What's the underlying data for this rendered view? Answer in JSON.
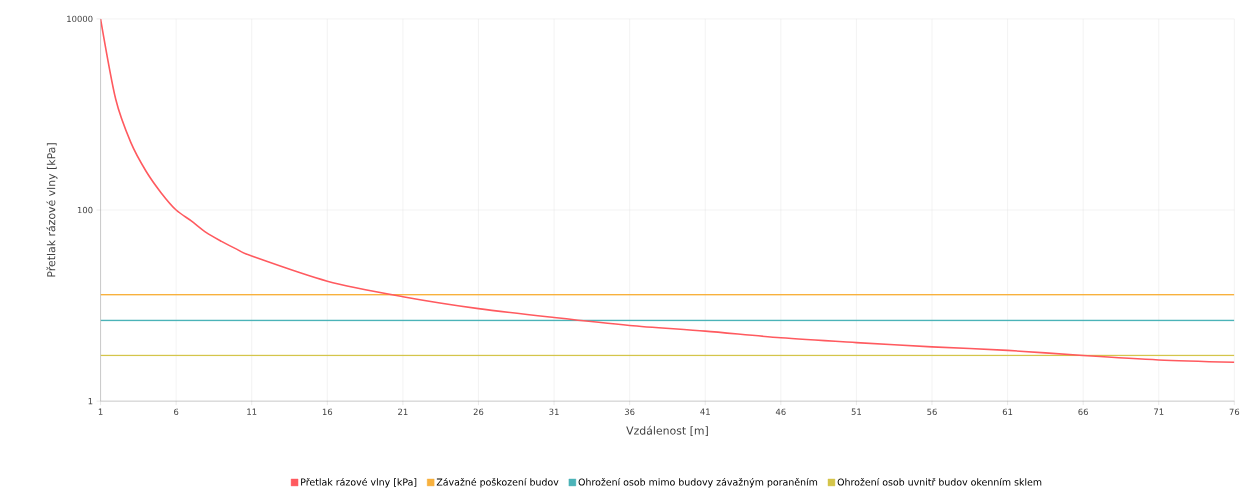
{
  "chart_data": {
    "type": "line",
    "xlabel": "Vzdálenost [m]",
    "ylabel": "Přetlak rázové vlny [kPa]",
    "log": "y",
    "xlim": [
      1,
      76
    ],
    "xticks": [
      1,
      6,
      11,
      16,
      21,
      26,
      31,
      36,
      41,
      46,
      51,
      56,
      61,
      66,
      71,
      76
    ],
    "ylim": [
      1,
      10000
    ],
    "yticks": [
      1,
      100,
      10000
    ],
    "grid": true,
    "legend": "bottom",
    "marker": "none",
    "line_style": "solid",
    "series": [
      {
        "name": "Přetlak rázové vlny [kPa]",
        "color": "#ff5a5f",
        "x": [
          1,
          2,
          3,
          4,
          5,
          6,
          7,
          8,
          9,
          10,
          11,
          16,
          21,
          26,
          31,
          36,
          41,
          46,
          51,
          56,
          61,
          66,
          71,
          76
        ],
        "values": [
          10000,
          1450,
          510,
          256,
          152,
          100,
          77,
          58,
          47,
          39,
          33,
          18,
          12.4,
          9.3,
          7.5,
          6.2,
          5.4,
          4.6,
          4.1,
          3.7,
          3.4,
          3.0,
          2.7,
          2.55
        ]
      },
      {
        "name": "Závažné poškození budov",
        "color": "#f8b13d",
        "x": [
          1,
          76
        ],
        "values": [
          13,
          13
        ]
      },
      {
        "name": "Ohrožení osob mimo budovy závažným poraněním",
        "color": "#4bb3b8",
        "x": [
          1,
          76
        ],
        "values": [
          7,
          7
        ]
      },
      {
        "name": "Ohrožení osob uvnitř budov okenním sklem",
        "color": "#d4c54a",
        "x": [
          1,
          76
        ],
        "values": [
          3,
          3
        ]
      }
    ]
  }
}
